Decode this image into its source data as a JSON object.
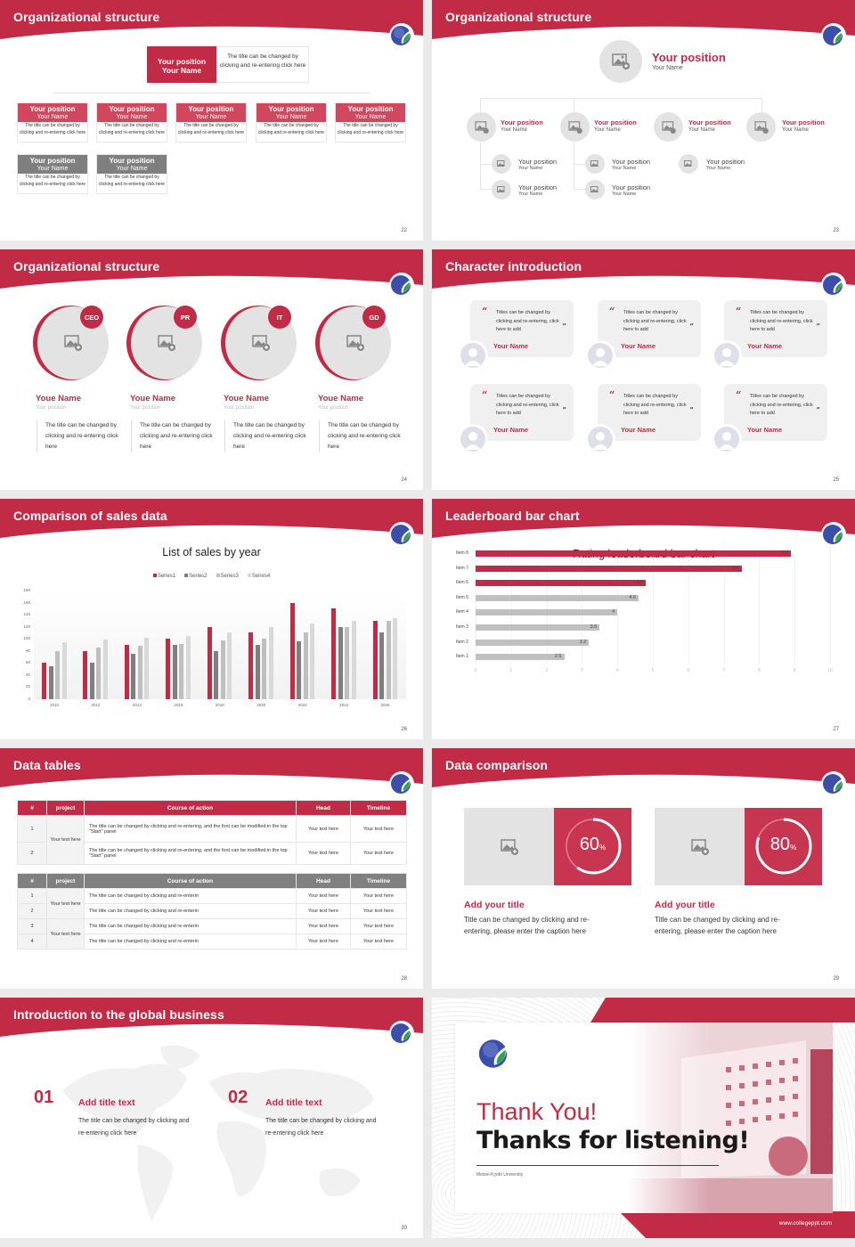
{
  "colors": {
    "accent": "#c22b45",
    "accent_light": "#d0475e",
    "gray_header": "#808080",
    "placeholder_gray": "#e3e3e3",
    "page_bg": "#ebebeb"
  },
  "slides": [
    {
      "title": "Organizational structure",
      "page": "22",
      "top": {
        "position": "Your position",
        "name": "Your Name",
        "desc": "The title can be changed by clicking and re-entering click here"
      },
      "cards": [
        {
          "position": "Your position",
          "name": "Your Name",
          "desc": "The title can be changed by clicking and re-entering click here",
          "style": "red"
        },
        {
          "position": "Your position",
          "name": "Your Name",
          "desc": "The title can be changed by clicking and re-entering click here",
          "style": "red"
        },
        {
          "position": "Your position",
          "name": "Your Name",
          "desc": "The title can be changed by clicking and re-entering click here",
          "style": "red"
        },
        {
          "position": "Your position",
          "name": "Your Name",
          "desc": "The title can be changed by clicking and re-entering click here",
          "style": "red"
        },
        {
          "position": "Your position",
          "name": "Your Name",
          "desc": "The title can be changed by clicking and re-entering click here",
          "style": "red"
        },
        {
          "position": "Your position",
          "name": "Your Name",
          "desc": "The title can be changed by clicking and re-entering click here",
          "style": "gray"
        },
        {
          "position": "Your position",
          "name": "Your Name",
          "desc": "The title can be changed by clicking and re-entering click here",
          "style": "gray"
        }
      ]
    },
    {
      "title": "Organizational structure",
      "page": "23",
      "top": {
        "position": "Your position",
        "name": "Your Name"
      },
      "level2": [
        {
          "position": "Your position",
          "name": "Your Name"
        },
        {
          "position": "Your position",
          "name": "Your Name"
        },
        {
          "position": "Your position",
          "name": "Your Name"
        },
        {
          "position": "Your position",
          "name": "Your Name"
        }
      ],
      "level3": [
        {
          "position": "Your position",
          "name": "Your Name"
        },
        {
          "position": "Your position",
          "name": "Your Name"
        },
        {
          "position": "Your position",
          "name": "Your Name"
        },
        {
          "position": "Your position",
          "name": "Your Name"
        },
        {
          "position": "Your position",
          "name": "Your Name"
        }
      ]
    },
    {
      "title": "Organizational structure",
      "page": "24",
      "people": [
        {
          "badge": "CEO",
          "name": "Youe Name",
          "position": "Your position",
          "desc": "The title can be changed by clicking and re-entering click here"
        },
        {
          "badge": "PR",
          "name": "Youe Name",
          "position": "Your position",
          "desc": "The title can be changed by clicking and re-entering click here"
        },
        {
          "badge": "IT",
          "name": "Youe Name",
          "position": "Your position",
          "desc": "The title can be changed by clicking and re-entering click here"
        },
        {
          "badge": "GD",
          "name": "Youe Name",
          "position": "Your position",
          "desc": "The title can be changed by clicking and re-entering click here"
        }
      ]
    },
    {
      "title": "Character introduction",
      "page": "25",
      "quotes": [
        {
          "text": "Titles can be changed by clicking and re-entering, click here to add",
          "name": "Your Name"
        },
        {
          "text": "Titles can be changed by clicking and re-entering, click here to add",
          "name": "Your Name"
        },
        {
          "text": "Titles can be changed by clicking and re-entering, click here to add",
          "name": "Your Name"
        },
        {
          "text": "Titles can be changed by clicking and re-entering, click here to add",
          "name": "Your Name"
        },
        {
          "text": "Titles can be changed by clicking and re-entering, click here to add",
          "name": "Your Name"
        },
        {
          "text": "Titles can be changed by clicking and re-entering, click here to add",
          "name": "Your Name"
        }
      ],
      "open_quote": "“",
      "close_quote": "”"
    },
    {
      "title": "Comparison of sales data",
      "page": "26"
    },
    {
      "title": "Leaderboard bar chart",
      "page": "27"
    },
    {
      "title": "Data tables",
      "page": "28",
      "table1": {
        "headers": [
          "#",
          "project",
          "Course of action",
          "Head",
          "Timeline"
        ],
        "project": "Your text here",
        "rows": [
          {
            "num": "1",
            "action": "The title can be changed by clicking and re-entering, and the font can be modified in the top \"Start\" panel",
            "head": "Your text here",
            "timeline": "Your text here"
          },
          {
            "num": "2",
            "action": "The title can be changed by clicking and re-entering, and the font can be modified in the top \"Start\" panel",
            "head": "Your text here",
            "timeline": "Your text here"
          }
        ]
      },
      "table2": {
        "headers": [
          "#",
          "project",
          "Course of action",
          "Head",
          "Timeline"
        ],
        "projects": [
          "Your text here",
          "Your text here"
        ],
        "rows": [
          {
            "num": "1",
            "action": "The title can be changed by clicking and re-enterin",
            "head": "Your text here",
            "timeline": "Your text here"
          },
          {
            "num": "2",
            "action": "The title can be changed by clicking and re-enterin",
            "head": "Your text here",
            "timeline": "Your text here"
          },
          {
            "num": "3",
            "action": "The title can be changed by clicking and re-enterin",
            "head": "Your text here",
            "timeline": "Your text here"
          },
          {
            "num": "4",
            "action": "The title can be changed by clicking and re-enterin",
            "head": "Your text here",
            "timeline": "Your text here"
          }
        ]
      }
    },
    {
      "title": "Data comparison",
      "page": "29",
      "items": [
        {
          "value": "60",
          "unit": "%",
          "title": "Add your title",
          "desc": "Title can be changed by clicking and re-entering, please enter the caption here"
        },
        {
          "value": "80",
          "unit": "%",
          "title": "Add your title",
          "desc": "Title can be changed by clicking and re-entering, please enter the caption here"
        }
      ]
    },
    {
      "title": "Introduction to the global business",
      "page": "30",
      "items": [
        {
          "num": "01",
          "title": "Add title text",
          "desc": "The title can be changed by clicking and re-entering click here"
        },
        {
          "num": "02",
          "title": "Add title text",
          "desc": "The title can be changed by clicking and re-entering click here"
        }
      ]
    },
    {
      "thanks": "Thank You!",
      "subtitle": "Thanks for listening!",
      "university": "Meisei-Kyoto University",
      "url": "www.collegeppt.com"
    }
  ],
  "chart_data": [
    {
      "type": "bar",
      "title": "List of sales by year",
      "categories": [
        "2010",
        "2012",
        "2014",
        "2016",
        "2018",
        "2020",
        "2022",
        "2024",
        "2026"
      ],
      "series": [
        {
          "name": "Series1",
          "color": "#c22b45",
          "values": [
            60,
            80,
            90,
            100,
            120,
            110,
            160,
            150,
            130
          ]
        },
        {
          "name": "Series2",
          "color": "#7f7f7f",
          "values": [
            55,
            60,
            75,
            90,
            80,
            90,
            96,
            120,
            110
          ]
        },
        {
          "name": "Series3",
          "color": "#bfbfbf",
          "values": [
            80,
            86,
            88,
            92,
            98,
            100,
            110,
            120,
            130
          ]
        },
        {
          "name": "Series4",
          "color": "#d9d9d9",
          "values": [
            95,
            99,
            102,
            105,
            110,
            120,
            126,
            130,
            135
          ]
        }
      ],
      "yticks": [
        "0",
        "20",
        "40",
        "60",
        "80",
        "100",
        "120",
        "140",
        "160",
        "180"
      ],
      "ylim": [
        0,
        180
      ],
      "xlabel": "",
      "ylabel": "",
      "legend_position": "top",
      "grid": false
    },
    {
      "type": "bar",
      "orientation": "horizontal",
      "title": "Rating leaderboard bar chart",
      "categories": [
        "Item 8",
        "Item 7",
        "Item 6",
        "Item 5",
        "Item 4",
        "Item 3",
        "Item 2",
        "Item 1"
      ],
      "values": [
        8.9,
        7.5,
        4.8,
        4.6,
        4,
        3.5,
        3.2,
        2.5
      ],
      "labels": [
        "8.9",
        "7.5",
        "4.8",
        "4.6",
        "4",
        "3.5",
        "3.2",
        "2.5"
      ],
      "highlight": [
        true,
        true,
        true,
        false,
        false,
        false,
        false,
        false
      ],
      "xticks": [
        "0",
        "1",
        "2",
        "3",
        "4",
        "5",
        "6",
        "7",
        "8",
        "9",
        "10"
      ],
      "xlim": [
        0,
        10
      ],
      "grid": true
    }
  ]
}
